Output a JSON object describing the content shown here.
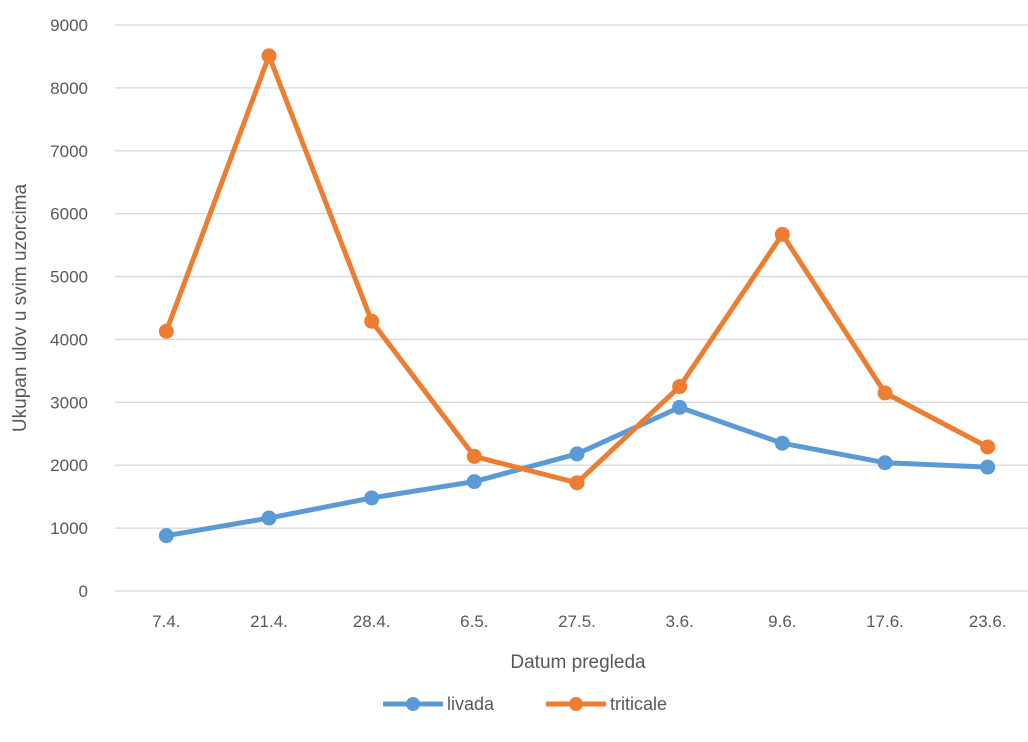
{
  "chart_data": {
    "type": "line",
    "xlabel": "Datum pregleda",
    "ylabel": "Ukupan ulov u svim uzorcima",
    "categories": [
      "7.4.",
      "21.4.",
      "28.4.",
      "6.5.",
      "27.5.",
      "3.6.",
      "9.6.",
      "17.6.",
      "23.6."
    ],
    "ylim": [
      0,
      9000
    ],
    "yticks": [
      0,
      1000,
      2000,
      3000,
      4000,
      5000,
      6000,
      7000,
      8000,
      9000
    ],
    "grid": true,
    "legend_position": "bottom",
    "series": [
      {
        "name": "livada",
        "color": "#5b9bd5",
        "values": [
          880,
          1160,
          1480,
          1740,
          2180,
          2920,
          2350,
          2040,
          1970
        ]
      },
      {
        "name": "triticale",
        "color": "#ed7d31",
        "values": [
          4130,
          8510,
          4290,
          2140,
          1720,
          3250,
          5670,
          3150,
          2290
        ]
      }
    ]
  }
}
